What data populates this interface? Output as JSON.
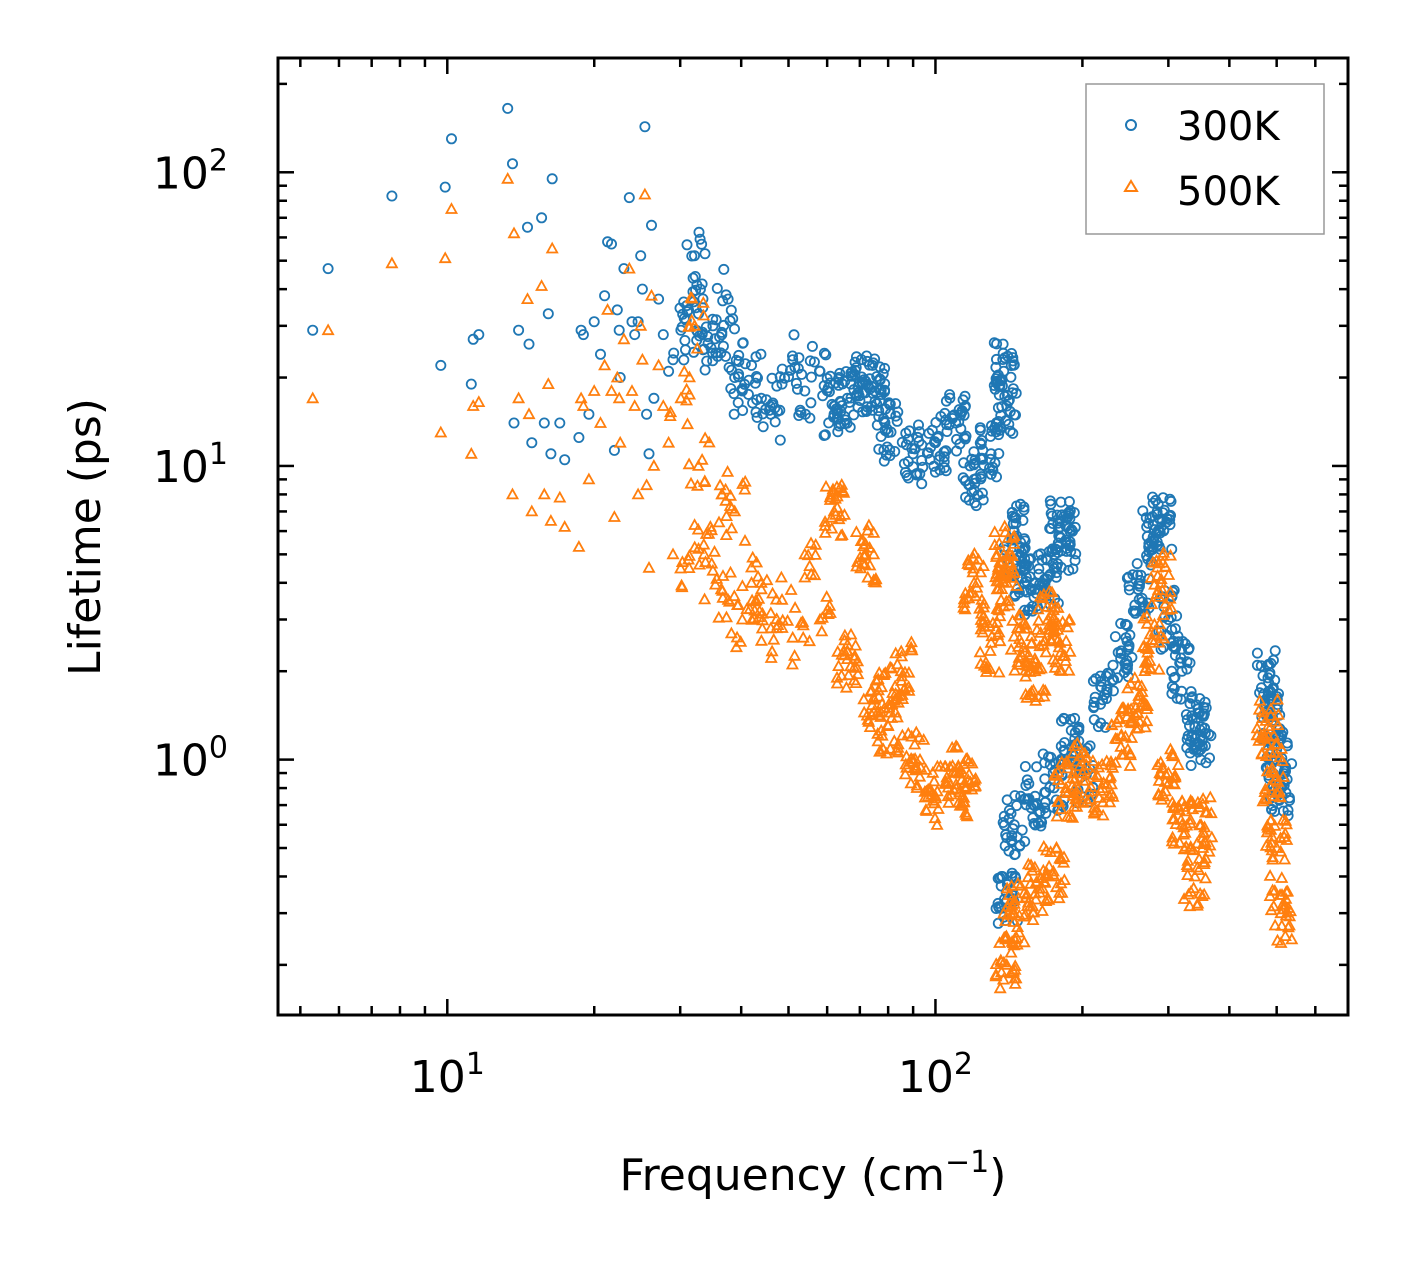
{
  "chart_data": {
    "type": "scatter",
    "title": "",
    "xlabel": "Frequency (cm",
    "xlabel_sup": "−1",
    "xlabel_suffix": ")",
    "ylabel": "Lifetime (ps)",
    "xscale": "log",
    "yscale": "log",
    "xlim": [
      4.5,
      700
    ],
    "ylim": [
      0.135,
      245
    ],
    "x_ticks": [
      {
        "value": 10,
        "base": "10",
        "exp": "1"
      },
      {
        "value": 100,
        "base": "10",
        "exp": "2"
      }
    ],
    "y_ticks": [
      {
        "value": 1,
        "base": "10",
        "exp": "0"
      },
      {
        "value": 10,
        "base": "10",
        "exp": "1"
      },
      {
        "value": 100,
        "base": "10",
        "exp": "2"
      }
    ],
    "legend": {
      "position": "top-right",
      "entries": [
        {
          "label": "300K",
          "marker": "circle",
          "color": "#1f77b4"
        },
        {
          "label": "500K",
          "marker": "triangle",
          "color": "#ff7f0e"
        }
      ]
    },
    "series": [
      {
        "name": "300K",
        "marker": "circle",
        "color": "#1f77b4",
        "points": [
          [
            5.3,
            29
          ],
          [
            5.7,
            47
          ],
          [
            7.7,
            83
          ],
          [
            9.7,
            22
          ],
          [
            9.9,
            89
          ],
          [
            10.2,
            130
          ],
          [
            11.2,
            19
          ],
          [
            11.3,
            27
          ],
          [
            11.6,
            28
          ],
          [
            13.3,
            165
          ],
          [
            13.6,
            107
          ],
          [
            13.7,
            14
          ],
          [
            14.0,
            29
          ],
          [
            14.6,
            65
          ],
          [
            14.7,
            26
          ],
          [
            14.9,
            12
          ],
          [
            15.6,
            70
          ],
          [
            15.8,
            14
          ],
          [
            16.1,
            33
          ],
          [
            16.3,
            11
          ],
          [
            16.4,
            95
          ],
          [
            17.0,
            14
          ],
          [
            17.4,
            10.5
          ],
          [
            18.6,
            12.5
          ],
          [
            18.8,
            29
          ],
          [
            19.0,
            28
          ],
          [
            19.5,
            15
          ],
          [
            20.0,
            31
          ],
          [
            20.6,
            24
          ],
          [
            21.0,
            38
          ],
          [
            21.3,
            58
          ],
          [
            21.7,
            57
          ],
          [
            22.0,
            11.3
          ],
          [
            22.3,
            34
          ],
          [
            22.5,
            29
          ],
          [
            22.6,
            20
          ],
          [
            23.0,
            47
          ],
          [
            23.6,
            82
          ],
          [
            23.9,
            31
          ],
          [
            24.2,
            28
          ],
          [
            24.6,
            31
          ],
          [
            24.9,
            52
          ],
          [
            25.1,
            40
          ],
          [
            25.4,
            143
          ],
          [
            25.6,
            15
          ],
          [
            25.9,
            11
          ],
          [
            26.2,
            66
          ],
          [
            26.5,
            17
          ],
          [
            27.1,
            37
          ],
          [
            27.7,
            28
          ],
          [
            28.4,
            21
          ],
          [
            29.0,
            23
          ],
          [
            30.1,
            29
          ],
          [
            31.2,
            34
          ],
          [
            32.1,
            52
          ],
          [
            32.7,
            33
          ],
          [
            33.6,
            25
          ],
          [
            35.0,
            30
          ],
          [
            36.5,
            28
          ],
          [
            37.6,
            37
          ],
          [
            38.8,
            20
          ],
          [
            40.2,
            18
          ],
          [
            42.0,
            22
          ],
          [
            44.0,
            17
          ],
          [
            46.0,
            15
          ],
          [
            48.5,
            19
          ],
          [
            51.0,
            23
          ],
          [
            54.0,
            18
          ],
          [
            58.0,
            21
          ],
          [
            62.0,
            16
          ],
          [
            66.0,
            17
          ],
          [
            72.0,
            19
          ],
          [
            75.0,
            18
          ],
          [
            80.0,
            13
          ],
          [
            90.0,
            11
          ],
          [
            100.0,
            12
          ],
          [
            110.0,
            14
          ],
          [
            120.0,
            9
          ],
          [
            130.0,
            11
          ],
          [
            138.0,
            21
          ],
          [
            140.0,
            16
          ],
          [
            145.0,
            6
          ],
          [
            150.0,
            4.5
          ],
          [
            160.0,
            3.8
          ],
          [
            170.0,
            4.2
          ],
          [
            180.0,
            6.2
          ],
          [
            185.0,
            5.5
          ],
          [
            190.0,
            1.1
          ],
          [
            200.0,
            0.9
          ],
          [
            220.0,
            1.6
          ],
          [
            240.0,
            2.3
          ],
          [
            260.0,
            3.8
          ],
          [
            280.0,
            5.6
          ],
          [
            290.0,
            6.2
          ],
          [
            300.0,
            3.0
          ],
          [
            320.0,
            2.0
          ],
          [
            340.0,
            1.3
          ],
          [
            350.0,
            1.2
          ],
          [
            480.0,
            1.9
          ],
          [
            490.0,
            1.4
          ],
          [
            500.0,
            1.0
          ],
          [
            510.0,
            0.8
          ],
          [
            140.0,
            0.33
          ],
          [
            145.0,
            0.6
          ],
          [
            160.0,
            0.75
          ],
          [
            175.0,
            0.85
          ]
        ]
      },
      {
        "name": "500K",
        "marker": "triangle",
        "color": "#ff7f0e",
        "points": [
          [
            5.3,
            17
          ],
          [
            5.7,
            29
          ],
          [
            7.7,
            49
          ],
          [
            9.7,
            13
          ],
          [
            9.9,
            51
          ],
          [
            10.2,
            75
          ],
          [
            11.2,
            11
          ],
          [
            11.3,
            16
          ],
          [
            11.6,
            16.5
          ],
          [
            13.3,
            95
          ],
          [
            13.6,
            8
          ],
          [
            13.7,
            62
          ],
          [
            14.0,
            17
          ],
          [
            14.6,
            37
          ],
          [
            14.7,
            15
          ],
          [
            14.9,
            7
          ],
          [
            15.6,
            41
          ],
          [
            15.8,
            8
          ],
          [
            16.1,
            19
          ],
          [
            16.3,
            6.5
          ],
          [
            16.4,
            55
          ],
          [
            17.0,
            7.8
          ],
          [
            17.4,
            6.2
          ],
          [
            18.6,
            5.3
          ],
          [
            18.8,
            17
          ],
          [
            19.0,
            16
          ],
          [
            19.5,
            9
          ],
          [
            20.0,
            18
          ],
          [
            20.6,
            14
          ],
          [
            21.0,
            22
          ],
          [
            21.3,
            34
          ],
          [
            21.7,
            18
          ],
          [
            22.0,
            6.7
          ],
          [
            22.3,
            20
          ],
          [
            22.5,
            17
          ],
          [
            22.6,
            12
          ],
          [
            23.0,
            27
          ],
          [
            23.6,
            47
          ],
          [
            23.9,
            18
          ],
          [
            24.2,
            16
          ],
          [
            24.6,
            8
          ],
          [
            24.9,
            30
          ],
          [
            25.1,
            23
          ],
          [
            25.4,
            84
          ],
          [
            25.6,
            8.6
          ],
          [
            25.9,
            4.5
          ],
          [
            26.2,
            38
          ],
          [
            26.5,
            10
          ],
          [
            27.1,
            22
          ],
          [
            27.7,
            16
          ],
          [
            28.4,
            12
          ],
          [
            29.0,
            5
          ],
          [
            30.1,
            17
          ],
          [
            31.2,
            4.8
          ],
          [
            32.1,
            30
          ],
          [
            32.7,
            10
          ],
          [
            33.6,
            5
          ],
          [
            35.0,
            4.4
          ],
          [
            36.5,
            8
          ],
          [
            37.6,
            3.5
          ],
          [
            38.8,
            7
          ],
          [
            40.2,
            3
          ],
          [
            42.0,
            4
          ],
          [
            44.0,
            3.8
          ],
          [
            46.0,
            2.8
          ],
          [
            48.5,
            3.5
          ],
          [
            51.0,
            2.6
          ],
          [
            54.0,
            5
          ],
          [
            58.0,
            3
          ],
          [
            62.0,
            7
          ],
          [
            66.0,
            2.2
          ],
          [
            72.0,
            5
          ],
          [
            75.0,
            1.6
          ],
          [
            80.0,
            1.3
          ],
          [
            85.0,
            2.0
          ],
          [
            90.0,
            1.0
          ],
          [
            100.0,
            0.75
          ],
          [
            110.0,
            0.9
          ],
          [
            115.0,
            0.8
          ],
          [
            120.0,
            4.0
          ],
          [
            130.0,
            2.5
          ],
          [
            138.0,
            5.0
          ],
          [
            140.0,
            4.0
          ],
          [
            150.0,
            2.5
          ],
          [
            160.0,
            2.0
          ],
          [
            170.0,
            3.0
          ],
          [
            180.0,
            2.5
          ],
          [
            185.0,
            0.8
          ],
          [
            200.0,
            0.9
          ],
          [
            220.0,
            0.8
          ],
          [
            240.0,
            1.2
          ],
          [
            260.0,
            1.6
          ],
          [
            280.0,
            2.5
          ],
          [
            290.0,
            4.0
          ],
          [
            300.0,
            0.9
          ],
          [
            320.0,
            0.6
          ],
          [
            340.0,
            0.4
          ],
          [
            350.0,
            0.6
          ],
          [
            480.0,
            1.3
          ],
          [
            490.0,
            0.9
          ],
          [
            500.0,
            0.5
          ],
          [
            510.0,
            0.3
          ],
          [
            140.0,
            0.2
          ],
          [
            145.0,
            0.3
          ],
          [
            160.0,
            0.35
          ],
          [
            175.0,
            0.4
          ]
        ]
      }
    ]
  }
}
